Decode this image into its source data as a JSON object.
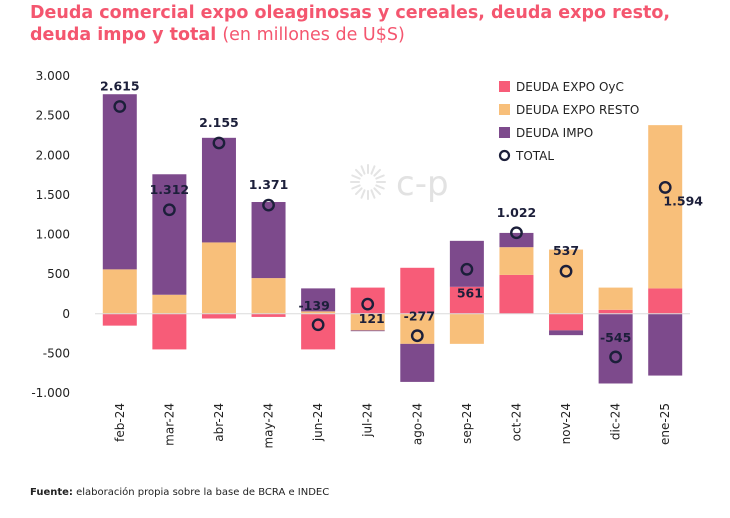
{
  "chart_data": {
    "type": "bar",
    "title": "Deuda comercial expo oleaginosas y cereales, deuda expo resto, deuda impo y total",
    "subtitle": "(en millones de U$S)",
    "categories": [
      "feb-24",
      "mar-24",
      "abr-24",
      "may-24",
      "jun-24",
      "jul-24",
      "ago-24",
      "sep-24",
      "oct-24",
      "nov-24",
      "dic-24",
      "ene-25"
    ],
    "ylim": [
      -1000,
      3000
    ],
    "yticks": [
      -1000,
      -500,
      0,
      500,
      1000,
      1500,
      2000,
      2500,
      3000
    ],
    "ytick_labels": [
      "-1.000",
      "-500",
      "0",
      "500",
      "1.000",
      "1.500",
      "2.000",
      "2.500",
      "3.000"
    ],
    "grid": false,
    "legend_position": "top-right",
    "series": [
      {
        "name": "DEUDA EXPO OyC",
        "color": "#f75c78",
        "values": [
          -150,
          -450,
          -60,
          -40,
          -450,
          330,
          580,
          340,
          490,
          -210,
          50,
          320
        ]
      },
      {
        "name": "DEUDA EXPO RESTO",
        "color": "#f8bf7a",
        "values": [
          560,
          240,
          900,
          450,
          30,
          -210,
          -380,
          -380,
          350,
          810,
          280,
          2060
        ]
      },
      {
        "name": "DEUDA IMPO",
        "color": "#7d4a8c",
        "values": [
          2210,
          1520,
          1320,
          960,
          290,
          -10,
          -480,
          580,
          180,
          -60,
          -880,
          -780
        ]
      }
    ],
    "total": {
      "name": "TOTAL",
      "values": [
        2615,
        1312,
        2155,
        1371,
        -139,
        121,
        -277,
        561,
        1022,
        537,
        -545,
        1594
      ],
      "labels": [
        "2.615",
        "1.312",
        "2.155",
        "1.371",
        "-139",
        "121",
        "-277",
        "561",
        "1.022",
        "537",
        "-545",
        "1.594"
      ]
    },
    "watermark": "c-p"
  },
  "source": {
    "label": "Fuente:",
    "text": " elaboración propia sobre la base de BCRA e INDEC"
  }
}
